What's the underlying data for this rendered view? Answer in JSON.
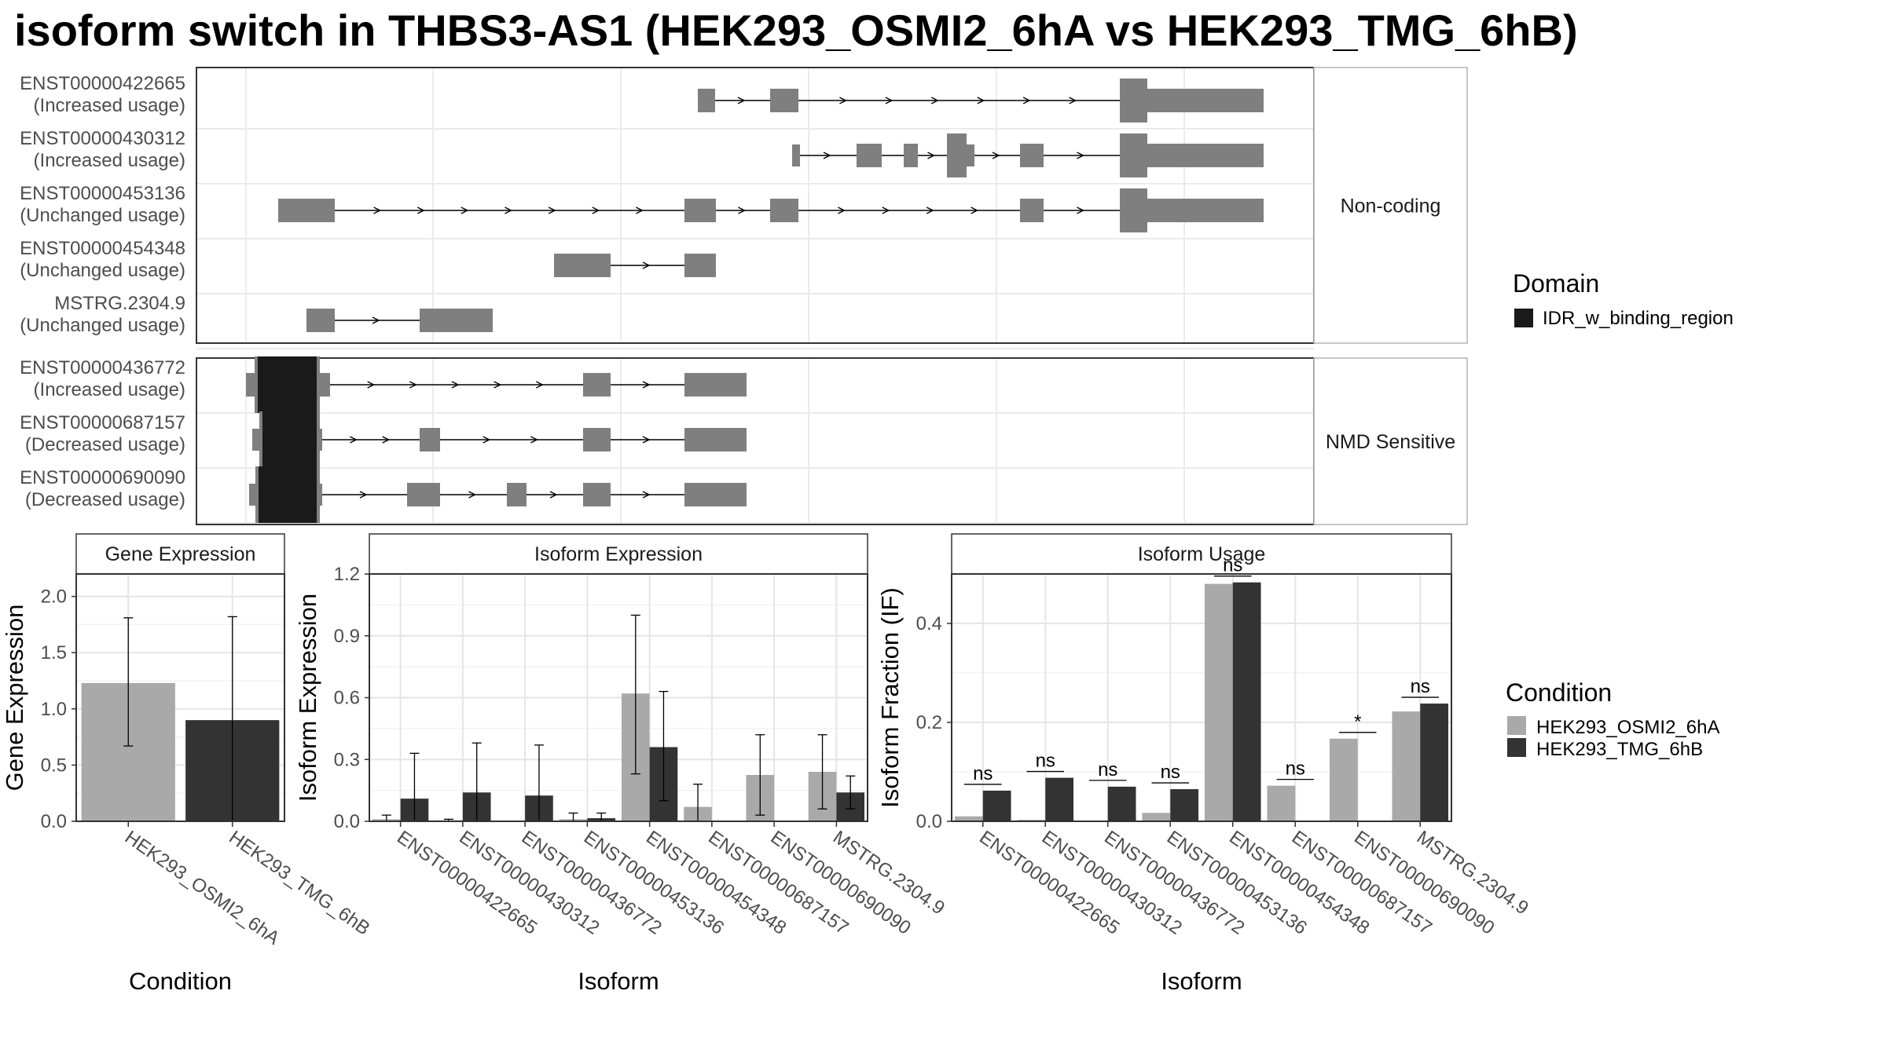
{
  "title": "isoform switch in THBS3-AS1 (HEK293_OSMI2_6hA vs HEK293_TMG_6hB)",
  "structure_panel": {
    "groups": [
      {
        "label": "Non-coding",
        "isoforms": [
          {
            "id": "ENST00000422665",
            "usage": "(Increased usage)"
          },
          {
            "id": "ENST00000430312",
            "usage": "(Increased usage)"
          },
          {
            "id": "ENST00000453136",
            "usage": "(Unchanged usage)"
          },
          {
            "id": "ENST00000454348",
            "usage": "(Unchanged usage)"
          },
          {
            "id": "MSTRG.2304.9",
            "usage": "(Unchanged usage)"
          }
        ]
      },
      {
        "label": "NMD Sensitive",
        "isoforms": [
          {
            "id": "ENST00000436772",
            "usage": "(Increased usage)"
          },
          {
            "id": "ENST00000687157",
            "usage": "(Decreased usage)"
          },
          {
            "id": "ENST00000690090",
            "usage": "(Decreased usage)"
          }
        ]
      }
    ],
    "domain_legend": {
      "title": "Domain",
      "items": [
        {
          "label": "IDR_w_binding_region",
          "color": "#1a1a1a"
        }
      ]
    },
    "exon_color": "#7f7f7f"
  },
  "condition_legend": {
    "title": "Condition",
    "items": [
      {
        "label": "HEK293_OSMI2_6hA",
        "color": "#a9a9a9"
      },
      {
        "label": "HEK293_TMG_6hB",
        "color": "#333333"
      }
    ]
  },
  "chart_data": [
    {
      "type": "bar",
      "title": "Gene Expression",
      "xlabel": "Condition",
      "ylabel": "Gene Expression",
      "categories": [
        "HEK293_OSMI2_6hA",
        "HEK293_TMG_6hB"
      ],
      "values": [
        1.23,
        0.9
      ],
      "error_low": [
        0.67,
        0.0
      ],
      "error_high": [
        1.81,
        1.82
      ],
      "ylim": [
        0,
        2.2
      ],
      "yticks": [
        "0.0",
        "0.5",
        "1.0",
        "1.5",
        "2.0"
      ],
      "grid": true
    },
    {
      "type": "bar",
      "title": "Isoform Expression",
      "xlabel": "Isoform",
      "ylabel": "Isoform Expression",
      "categories": [
        "ENST00000422665",
        "ENST00000430312",
        "ENST00000436772",
        "ENST00000453136",
        "ENST00000454348",
        "ENST00000687157",
        "ENST00000690090",
        "MSTRG.2304.9"
      ],
      "series": [
        {
          "name": "HEK293_OSMI2_6hA",
          "values": [
            0.01,
            0.005,
            0.0,
            0.01,
            0.62,
            0.07,
            0.225,
            0.24
          ],
          "error_low": [
            0.0,
            0.0,
            0.0,
            0.0,
            0.23,
            0.0,
            0.03,
            0.06
          ],
          "error_high": [
            0.03,
            0.01,
            0.0,
            0.04,
            1.0,
            0.18,
            0.42,
            0.42
          ]
        },
        {
          "name": "HEK293_TMG_6hB",
          "values": [
            0.11,
            0.14,
            0.125,
            0.015,
            0.36,
            0.0,
            0.0,
            0.14
          ],
          "error_low": [
            0.0,
            0.0,
            0.0,
            0.0,
            0.1,
            0.0,
            0.0,
            0.06
          ],
          "error_high": [
            0.33,
            0.38,
            0.37,
            0.04,
            0.63,
            0.0,
            0.0,
            0.22
          ]
        }
      ],
      "ylim": [
        0,
        1.2
      ],
      "yticks": [
        "0.0",
        "0.3",
        "0.6",
        "0.9",
        "1.2"
      ],
      "grid": true
    },
    {
      "type": "bar",
      "title": "Isoform Usage",
      "xlabel": "Isoform",
      "ylabel": "Isoform Fraction (IF)",
      "categories": [
        "ENST00000422665",
        "ENST00000430312",
        "ENST00000436772",
        "ENST00000453136",
        "ENST00000454348",
        "ENST00000687157",
        "ENST00000690090",
        "MSTRG.2304.9"
      ],
      "series": [
        {
          "name": "HEK293_OSMI2_6hA",
          "values": [
            0.01,
            0.003,
            0.0,
            0.017,
            0.48,
            0.072,
            0.167,
            0.222
          ]
        },
        {
          "name": "HEK293_TMG_6hB",
          "values": [
            0.062,
            0.088,
            0.07,
            0.065,
            0.483,
            0.0,
            0.0,
            0.238
          ]
        }
      ],
      "significance": [
        "ns",
        "ns",
        "ns",
        "ns",
        "ns",
        "ns",
        "*",
        "ns"
      ],
      "ylim": [
        0,
        0.5
      ],
      "yticks": [
        "0.0",
        "0.2",
        "0.4"
      ],
      "grid": true
    }
  ]
}
